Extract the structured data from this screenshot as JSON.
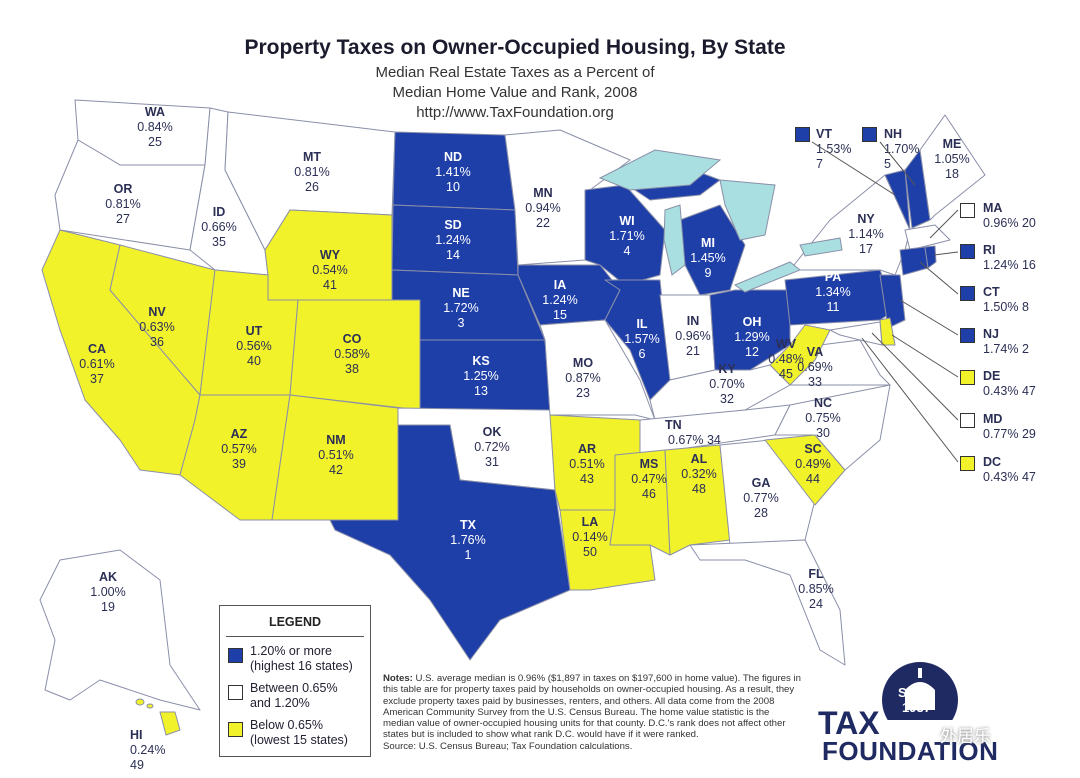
{
  "title": "Property Taxes on Owner-Occupied Housing, By State",
  "subtitle_line1": "Median Real Estate Taxes as a Percent of",
  "subtitle_line2": "Median Home Value and Rank, 2008",
  "url": "http://www.TaxFoundation.org",
  "colors": {
    "high": "#1f3fa8",
    "mid": "#ffffff",
    "low": "#f2f22a",
    "lakes": "#a9dfe0",
    "border": "#8a8fa8"
  },
  "states": {
    "WA": {
      "abbr": "WA",
      "rate": "0.84%",
      "rank": "25",
      "tier": "mid"
    },
    "OR": {
      "abbr": "OR",
      "rate": "0.81%",
      "rank": "27",
      "tier": "mid"
    },
    "CA": {
      "abbr": "CA",
      "rate": "0.61%",
      "rank": "37",
      "tier": "low"
    },
    "NV": {
      "abbr": "NV",
      "rate": "0.63%",
      "rank": "36",
      "tier": "low"
    },
    "ID": {
      "abbr": "ID",
      "rate": "0.66%",
      "rank": "35",
      "tier": "mid"
    },
    "MT": {
      "abbr": "MT",
      "rate": "0.81%",
      "rank": "26",
      "tier": "mid"
    },
    "WY": {
      "abbr": "WY",
      "rate": "0.54%",
      "rank": "41",
      "tier": "low"
    },
    "UT": {
      "abbr": "UT",
      "rate": "0.56%",
      "rank": "40",
      "tier": "low"
    },
    "CO": {
      "abbr": "CO",
      "rate": "0.58%",
      "rank": "38",
      "tier": "low"
    },
    "AZ": {
      "abbr": "AZ",
      "rate": "0.57%",
      "rank": "39",
      "tier": "low"
    },
    "NM": {
      "abbr": "NM",
      "rate": "0.51%",
      "rank": "42",
      "tier": "low"
    },
    "ND": {
      "abbr": "ND",
      "rate": "1.41%",
      "rank": "10",
      "tier": "high"
    },
    "SD": {
      "abbr": "SD",
      "rate": "1.24%",
      "rank": "14",
      "tier": "high"
    },
    "NE": {
      "abbr": "NE",
      "rate": "1.72%",
      "rank": "3",
      "tier": "high"
    },
    "KS": {
      "abbr": "KS",
      "rate": "1.25%",
      "rank": "13",
      "tier": "high"
    },
    "OK": {
      "abbr": "OK",
      "rate": "0.72%",
      "rank": "31",
      "tier": "mid"
    },
    "TX": {
      "abbr": "TX",
      "rate": "1.76%",
      "rank": "1",
      "tier": "high"
    },
    "MN": {
      "abbr": "MN",
      "rate": "0.94%",
      "rank": "22",
      "tier": "mid"
    },
    "IA": {
      "abbr": "IA",
      "rate": "1.24%",
      "rank": "15",
      "tier": "high"
    },
    "MO": {
      "abbr": "MO",
      "rate": "0.87%",
      "rank": "23",
      "tier": "mid"
    },
    "AR": {
      "abbr": "AR",
      "rate": "0.51%",
      "rank": "43",
      "tier": "low"
    },
    "LA": {
      "abbr": "LA",
      "rate": "0.14%",
      "rank": "50",
      "tier": "low"
    },
    "WI": {
      "abbr": "WI",
      "rate": "1.71%",
      "rank": "4",
      "tier": "high"
    },
    "IL": {
      "abbr": "IL",
      "rate": "1.57%",
      "rank": "6",
      "tier": "high"
    },
    "MI": {
      "abbr": "MI",
      "rate": "1.45%",
      "rank": "9",
      "tier": "high"
    },
    "IN": {
      "abbr": "IN",
      "rate": "0.96%",
      "rank": "21",
      "tier": "mid"
    },
    "OH": {
      "abbr": "OH",
      "rate": "1.29%",
      "rank": "12",
      "tier": "high"
    },
    "KY": {
      "abbr": "KY",
      "rate": "0.70%",
      "rank": "32",
      "tier": "mid"
    },
    "TN": {
      "abbr": "TN",
      "rate": "0.67%",
      "rank": "34",
      "tier": "mid"
    },
    "MS": {
      "abbr": "MS",
      "rate": "0.47%",
      "rank": "46",
      "tier": "low"
    },
    "AL": {
      "abbr": "AL",
      "rate": "0.32%",
      "rank": "48",
      "tier": "low"
    },
    "GA": {
      "abbr": "GA",
      "rate": "0.77%",
      "rank": "28",
      "tier": "mid"
    },
    "FL": {
      "abbr": "FL",
      "rate": "0.85%",
      "rank": "24",
      "tier": "mid"
    },
    "SC": {
      "abbr": "SC",
      "rate": "0.49%",
      "rank": "44",
      "tier": "low"
    },
    "NC": {
      "abbr": "NC",
      "rate": "0.75%",
      "rank": "30",
      "tier": "mid"
    },
    "VA": {
      "abbr": "VA",
      "rate": "0.69%",
      "rank": "33",
      "tier": "mid"
    },
    "WV": {
      "abbr": "WV",
      "rate": "0.48%",
      "rank": "45",
      "tier": "low"
    },
    "PA": {
      "abbr": "PA",
      "rate": "1.34%",
      "rank": "11",
      "tier": "high"
    },
    "NY": {
      "abbr": "NY",
      "rate": "1.14%",
      "rank": "17",
      "tier": "mid"
    },
    "VT": {
      "abbr": "VT",
      "rate": "1.53%",
      "rank": "7",
      "tier": "high"
    },
    "NH": {
      "abbr": "NH",
      "rate": "1.70%",
      "rank": "5",
      "tier": "high"
    },
    "ME": {
      "abbr": "ME",
      "rate": "1.05%",
      "rank": "18",
      "tier": "mid"
    },
    "MA": {
      "abbr": "MA",
      "rate": "0.96%",
      "rank": "20",
      "tier": "mid"
    },
    "RI": {
      "abbr": "RI",
      "rate": "1.24%",
      "rank": "16",
      "tier": "high"
    },
    "CT": {
      "abbr": "CT",
      "rate": "1.50%",
      "rank": "8",
      "tier": "high"
    },
    "NJ": {
      "abbr": "NJ",
      "rate": "1.74%",
      "rank": "2",
      "tier": "high"
    },
    "DE": {
      "abbr": "DE",
      "rate": "0.43%",
      "rank": "47",
      "tier": "low"
    },
    "MD": {
      "abbr": "MD",
      "rate": "0.77%",
      "rank": "29",
      "tier": "mid"
    },
    "DC": {
      "abbr": "DC",
      "rate": "0.43%",
      "rank": "47",
      "tier": "low"
    },
    "AK": {
      "abbr": "AK",
      "rate": "1.00%",
      "rank": "19",
      "tier": "mid"
    },
    "HI": {
      "abbr": "HI",
      "rate": "0.24%",
      "rank": "49",
      "tier": "low"
    }
  },
  "legend": {
    "title": "LEGEND",
    "high_l1": "1.20% or more",
    "high_l2": "(highest 16 states)",
    "mid_l1": "Between 0.65%",
    "mid_l2": "and 1.20%",
    "low_l1": "Below 0.65%",
    "low_l2": "(lowest 15 states)"
  },
  "notes": {
    "label": "Notes:",
    "text1": "U.S. average median is 0.96% ($1,897 in taxes on $197,600 in home value). The figures in this table are for property taxes paid by households on owner-occupied housing. As a result, they exclude property taxes paid by businesses, renters, and others. All data come from the 2008 American Community Survey from the U.S. Census Bureau. The home value statistic is the median value of owner-occupied housing units for that county. D.C.'s rank does not affect other states but is included to show what rank D.C. would have if it were ranked.",
    "source": "Source: U.S. Census Bureau; Tax Foundation calculations."
  },
  "logo": {
    "since_l1": "Since",
    "since_l2": "1937",
    "name1": "TAX",
    "name2": "FOUNDATION"
  },
  "watermark": "外居乐"
}
